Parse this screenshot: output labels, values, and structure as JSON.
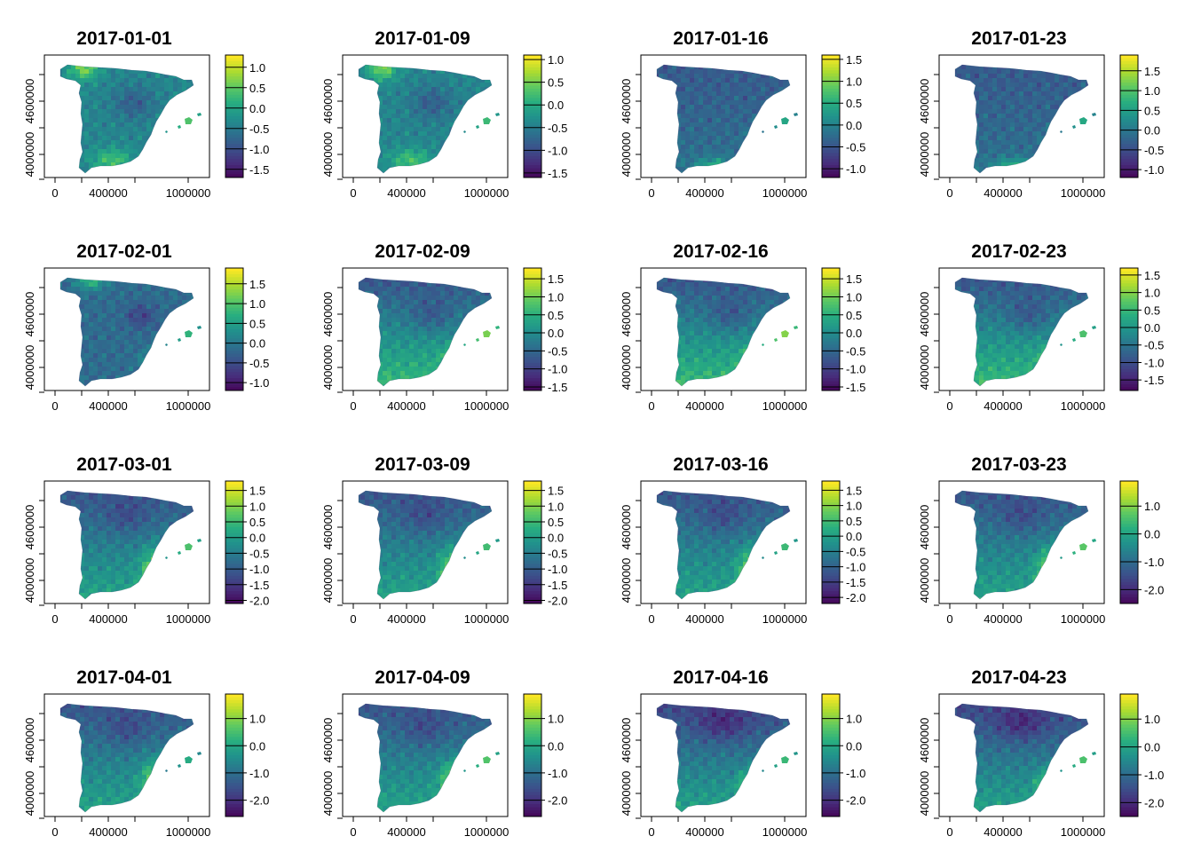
{
  "chart_data": {
    "type": "heatmap",
    "panels": [
      {
        "title": "2017-01-01",
        "legend_ticks": [
          "1.0",
          "0.5",
          "0.0",
          "-0.5",
          "-1.0",
          "-1.5"
        ],
        "legend_range": [
          -1.7,
          1.3
        ],
        "pattern": "north_high"
      },
      {
        "title": "2017-01-09",
        "legend_ticks": [
          "1.0",
          "0.5",
          "0.0",
          "-0.5",
          "-1.0",
          "-1.5"
        ],
        "legend_range": [
          -1.6,
          1.1
        ],
        "pattern": "north_high"
      },
      {
        "title": "2017-01-16",
        "legend_ticks": [
          "1.5",
          "1.0",
          "0.5",
          "0.0",
          "-0.5",
          "-1.0"
        ],
        "legend_range": [
          -1.2,
          1.6
        ],
        "pattern": "east_high"
      },
      {
        "title": "2017-01-23",
        "legend_ticks": [
          "1.5",
          "1.0",
          "0.5",
          "0.0",
          "-0.5",
          "-1.0"
        ],
        "legend_range": [
          -1.2,
          1.9
        ],
        "pattern": "east_high"
      },
      {
        "title": "2017-02-01",
        "legend_ticks": [
          "1.5",
          "1.0",
          "0.5",
          "0.0",
          "-0.5",
          "-1.0"
        ],
        "legend_range": [
          -1.2,
          1.9
        ],
        "pattern": "mixed"
      },
      {
        "title": "2017-02-09",
        "legend_ticks": [
          "1.5",
          "1.0",
          "0.5",
          "0.0",
          "-0.5",
          "-1.0",
          "-1.5"
        ],
        "legend_range": [
          -1.6,
          1.8
        ],
        "pattern": "south_high"
      },
      {
        "title": "2017-02-16",
        "legend_ticks": [
          "1.5",
          "1.0",
          "0.5",
          "0.0",
          "-0.5",
          "-1.0",
          "-1.5"
        ],
        "legend_range": [
          -1.6,
          1.8
        ],
        "pattern": "south_high"
      },
      {
        "title": "2017-02-23",
        "legend_ticks": [
          "1.5",
          "1.0",
          "0.5",
          "0.0",
          "-0.5",
          "-1.0",
          "-1.5"
        ],
        "legend_range": [
          -1.8,
          1.7
        ],
        "pattern": "south_high"
      },
      {
        "title": "2017-03-01",
        "legend_ticks": [
          "1.5",
          "1.0",
          "0.5",
          "0.0",
          "-0.5",
          "-1.0",
          "-1.5",
          "-2.0"
        ],
        "legend_range": [
          -2.1,
          1.8
        ],
        "pattern": "southeast_high"
      },
      {
        "title": "2017-03-09",
        "legend_ticks": [
          "1.5",
          "1.0",
          "0.5",
          "0.0",
          "-0.5",
          "-1.0",
          "-1.5",
          "-2.0"
        ],
        "legend_range": [
          -2.1,
          1.8
        ],
        "pattern": "southeast_high"
      },
      {
        "title": "2017-03-16",
        "legend_ticks": [
          "1.5",
          "1.0",
          "0.5",
          "0.0",
          "-0.5",
          "-1.0",
          "-1.5",
          "-2.0"
        ],
        "legend_range": [
          -2.2,
          1.8
        ],
        "pattern": "southeast_high"
      },
      {
        "title": "2017-03-23",
        "legend_ticks": [
          "1.0",
          "0.0",
          "-1.0",
          "-2.0"
        ],
        "legend_range": [
          -2.5,
          1.9
        ],
        "pattern": "southeast_high"
      },
      {
        "title": "2017-04-01",
        "legend_ticks": [
          "1.0",
          "0.0",
          "-1.0",
          "-2.0"
        ],
        "legend_range": [
          -2.6,
          1.9
        ],
        "pattern": "southeast_high"
      },
      {
        "title": "2017-04-09",
        "legend_ticks": [
          "1.0",
          "0.0",
          "-1.0",
          "-2.0"
        ],
        "legend_range": [
          -2.6,
          1.9
        ],
        "pattern": "southeast_high"
      },
      {
        "title": "2017-04-16",
        "legend_ticks": [
          "1.0",
          "0.0",
          "-1.0",
          "-2.0"
        ],
        "legend_range": [
          -2.6,
          1.9
        ],
        "pattern": "north_low"
      },
      {
        "title": "2017-04-23",
        "legend_ticks": [
          "1.0",
          "0.0",
          "-1.0",
          "-2.0"
        ],
        "legend_range": [
          -2.5,
          1.9
        ],
        "pattern": "north_low"
      }
    ],
    "x_ticks": [
      "0",
      "400000",
      "1000000"
    ],
    "y_ticks": [
      "4000000",
      "4600000"
    ],
    "colormap": [
      "#440154",
      "#472d7b",
      "#3b528b",
      "#2c728e",
      "#21918c",
      "#28ae80",
      "#5ec962",
      "#addc30",
      "#fde725"
    ]
  }
}
